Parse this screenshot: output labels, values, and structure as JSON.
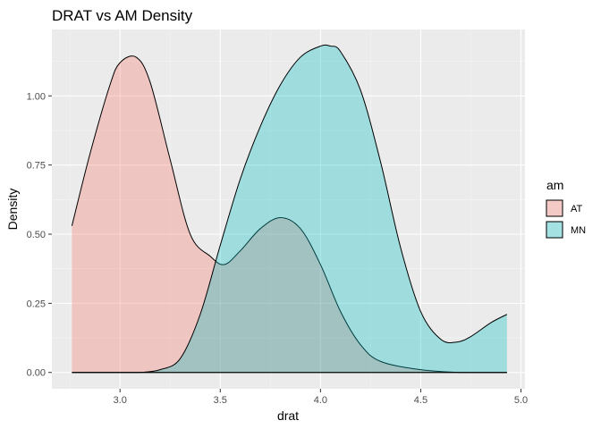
{
  "chart_data": {
    "type": "area",
    "title": "DRAT vs AM Density",
    "xlabel": "drat",
    "ylabel": "Density",
    "xlim": [
      2.66,
      5.02
    ],
    "ylim": [
      -0.059,
      1.24
    ],
    "x_ticks": [
      3.0,
      3.5,
      4.0,
      4.5,
      5.0
    ],
    "x_tick_labels": [
      "3.0",
      "3.5",
      "4.0",
      "4.5",
      "5.0"
    ],
    "y_ticks": [
      0.0,
      0.25,
      0.5,
      0.75,
      1.0
    ],
    "y_tick_labels": [
      "0.00",
      "0.25",
      "0.50",
      "0.75",
      "1.00"
    ],
    "grid": true,
    "panel_background": "#ebebeb",
    "legend": {
      "title": "am",
      "position": "right"
    },
    "series": [
      {
        "name": "AT",
        "color": "#f8766d",
        "x": [
          2.76,
          2.85,
          2.95,
          3.0,
          3.08,
          3.15,
          3.25,
          3.35,
          3.45,
          3.52,
          3.6,
          3.7,
          3.8,
          3.9,
          4.0,
          4.1,
          4.2,
          4.3,
          4.5,
          4.7,
          4.93
        ],
        "y": [
          0.53,
          0.79,
          1.04,
          1.12,
          1.14,
          1.05,
          0.77,
          0.5,
          0.42,
          0.39,
          0.44,
          0.52,
          0.56,
          0.52,
          0.39,
          0.22,
          0.1,
          0.04,
          0.01,
          0.0,
          0.0
        ]
      },
      {
        "name": "MN",
        "color": "#00bfc4",
        "x": [
          2.76,
          2.9,
          3.0,
          3.1,
          3.2,
          3.3,
          3.4,
          3.5,
          3.6,
          3.7,
          3.8,
          3.9,
          4.0,
          4.05,
          4.1,
          4.2,
          4.3,
          4.4,
          4.5,
          4.6,
          4.68,
          4.75,
          4.85,
          4.93
        ],
        "y": [
          0.0,
          0.0,
          0.0,
          0.0,
          0.01,
          0.05,
          0.21,
          0.46,
          0.7,
          0.89,
          1.04,
          1.14,
          1.18,
          1.18,
          1.16,
          1.02,
          0.76,
          0.45,
          0.22,
          0.12,
          0.11,
          0.13,
          0.18,
          0.21
        ]
      }
    ]
  }
}
